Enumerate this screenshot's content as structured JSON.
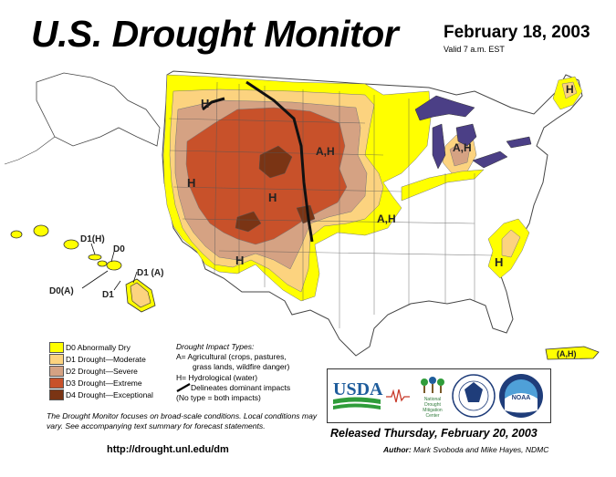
{
  "header": {
    "title": "U.S. Drought Monitor",
    "date": "February 18, 2003",
    "valid": "Valid 7 a.m. EST"
  },
  "colors": {
    "D0": "#ffff00",
    "D1": "#fcd37f",
    "D2": "#d5a283",
    "D3": "#c8512a",
    "D4": "#7a3414",
    "water": "#4b3f86",
    "land": "#ffffff",
    "boundary": "#555555"
  },
  "map": {
    "impact_labels": [
      "H",
      "A,H",
      "H",
      "H",
      "A,H",
      "H",
      "A,H",
      "H",
      "H"
    ],
    "hawaii_labels": [
      "D1(H)",
      "D0",
      "D1 (A)",
      "D0(A)",
      "D1"
    ],
    "puerto_rico_label": "(A,H)"
  },
  "legend": {
    "items": [
      {
        "code": "D0",
        "label": "D0 Abnormally Dry"
      },
      {
        "code": "D1",
        "label": "D1 Drought—Moderate"
      },
      {
        "code": "D2",
        "label": "D2 Drought—Severe"
      },
      {
        "code": "D3",
        "label": "D3 Drought—Extreme"
      },
      {
        "code": "D4",
        "label": "D4 Drought—Exceptional"
      }
    ]
  },
  "impact_types": {
    "title": "Drought Impact Types:",
    "lines": [
      "A= Agricultural (crops, pastures,",
      "grass lands, wildfire danger)",
      "H= Hydrological (water)",
      "Delineates dominant impacts",
      "(No type = both impacts)"
    ]
  },
  "note": {
    "text": "The Drought Monitor focuses on broad-scale conditions. Local conditions may vary. See accompanying text summary for forecast statements."
  },
  "url": "http://drought.unl.edu/dm",
  "logos": {
    "usda": "USDA",
    "ndmc": [
      "National",
      "Drought",
      "Mitigation",
      "Center"
    ],
    "noaa": "NOAA"
  },
  "footer": {
    "released": "Released Thursday, February 20, 2003",
    "author_label": "Author:",
    "author_names": "Mark Svoboda and Mike Hayes, NDMC"
  }
}
